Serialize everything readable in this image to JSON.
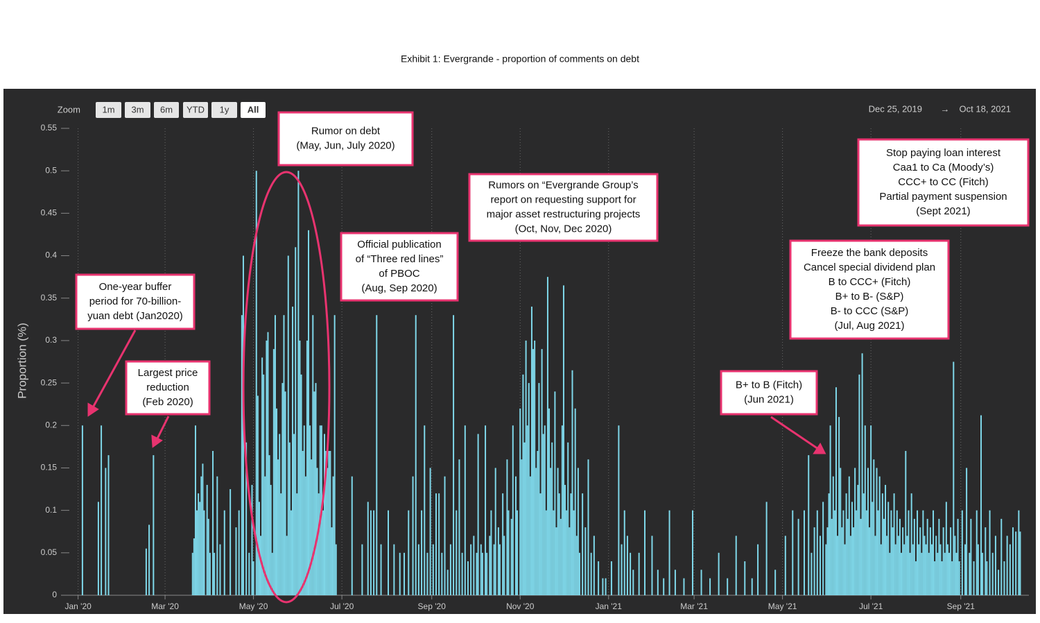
{
  "chart_data": {
    "type": "bar",
    "title": "Exhibit 1: Evergrande - proportion of comments on debt",
    "y_label": "Proportion (%)",
    "zoom_label": "Zoom",
    "zoom_buttons": [
      "1m",
      "3m",
      "6m",
      "YTD",
      "1y",
      "All"
    ],
    "range_start": "Dec 25, 2019",
    "range_separator": "→",
    "range_end": "Oct 18, 2021",
    "color": "#7fd8ea",
    "xlim": [
      "2019-12-25",
      "2021-10-18"
    ],
    "ylim": [
      0,
      0.55
    ],
    "yticks": [
      0,
      0.05,
      0.1,
      0.15,
      0.2,
      0.25,
      0.3,
      0.35,
      0.4,
      0.45,
      0.5,
      0.55
    ],
    "xticks": [
      {
        "value": "2020-01-01",
        "label": "Jan '20"
      },
      {
        "value": "2020-03-01",
        "label": "Mar '20"
      },
      {
        "value": "2020-05-01",
        "label": "May '20"
      },
      {
        "value": "2020-07-01",
        "label": "Jul '20"
      },
      {
        "value": "2020-09-01",
        "label": "Sep '20"
      },
      {
        "value": "2020-11-01",
        "label": "Nov '20"
      },
      {
        "value": "2021-01-01",
        "label": "Jan '21"
      },
      {
        "value": "2021-03-01",
        "label": "Mar '21"
      },
      {
        "value": "2021-05-01",
        "label": "May '21"
      },
      {
        "value": "2021-07-01",
        "label": "Jul '21"
      },
      {
        "value": "2021-09-01",
        "label": "Sep '21"
      }
    ],
    "grid": true,
    "annotations": [
      {
        "lines": [
          "One-year buffer",
          "period for 70-billion-",
          "yuan debt (Jan2020)"
        ]
      },
      {
        "lines": [
          "Largest price",
          "reduction",
          "(Feb 2020)"
        ]
      },
      {
        "lines": [
          "Rumor on debt",
          "(May, Jun, July 2020)"
        ]
      },
      {
        "lines": [
          "Official publication",
          "of “Three red lines”",
          "of PBOC",
          "(Aug, Sep 2020)"
        ]
      },
      {
        "lines": [
          "Rumors on “Evergrande Group’s",
          "report on requesting support for",
          "major asset restructuring projects",
          "(Oct, Nov, Dec 2020)"
        ]
      },
      {
        "lines": [
          "Stop paying loan interest",
          "Caa1 to Ca (Moody’s)",
          "CCC+ to CC (Fitch)",
          "Partial payment suspension",
          "(Sept 2021)"
        ]
      },
      {
        "lines": [
          "Freeze the bank deposits",
          "Cancel special dividend plan",
          "B to CCC+ (Fitch)",
          "B+ to B- (S&P)",
          "B- to CCC (S&P)",
          "(Jul, Aug 2021)"
        ]
      },
      {
        "lines": [
          "B+ to B (Fitch)",
          "(Jun 2021)"
        ]
      }
    ],
    "x": [
      "2020-01-04",
      "2020-01-15",
      "2020-01-17",
      "2020-01-20",
      "2020-01-22",
      "2020-02-17",
      "2020-02-19",
      "2020-02-22",
      "2020-03-20",
      "2020-03-21",
      "2020-03-22",
      "2020-03-23",
      "2020-03-24",
      "2020-03-25",
      "2020-03-26",
      "2020-03-27",
      "2020-03-28",
      "2020-03-30",
      "2020-03-31",
      "2020-04-01",
      "2020-04-03",
      "2020-04-04",
      "2020-04-06",
      "2020-04-08",
      "2020-04-11",
      "2020-04-15",
      "2020-04-19",
      "2020-04-21",
      "2020-04-23",
      "2020-04-24",
      "2020-04-26",
      "2020-04-28",
      "2020-04-30",
      "2020-05-01",
      "2020-05-03",
      "2020-05-04",
      "2020-05-05",
      "2020-05-06",
      "2020-05-07",
      "2020-05-08",
      "2020-05-09",
      "2020-05-10",
      "2020-05-11",
      "2020-05-12",
      "2020-05-13",
      "2020-05-14",
      "2020-05-15",
      "2020-05-16",
      "2020-05-17",
      "2020-05-18",
      "2020-05-19",
      "2020-05-20",
      "2020-05-21",
      "2020-05-22",
      "2020-05-23",
      "2020-05-24",
      "2020-05-25",
      "2020-05-26",
      "2020-05-27",
      "2020-05-28",
      "2020-05-29",
      "2020-05-30",
      "2020-05-31",
      "2020-06-01",
      "2020-06-02",
      "2020-06-03",
      "2020-06-04",
      "2020-06-05",
      "2020-06-06",
      "2020-06-07",
      "2020-06-08",
      "2020-06-09",
      "2020-06-10",
      "2020-06-11",
      "2020-06-12",
      "2020-06-13",
      "2020-06-14",
      "2020-06-15",
      "2020-06-16",
      "2020-06-17",
      "2020-06-18",
      "2020-06-19",
      "2020-06-20",
      "2020-06-21",
      "2020-06-22",
      "2020-06-23",
      "2020-06-24",
      "2020-06-25",
      "2020-06-26",
      "2020-06-27",
      "2020-07-08",
      "2020-07-15",
      "2020-07-19",
      "2020-07-21",
      "2020-07-23",
      "2020-07-25",
      "2020-07-28",
      "2020-08-02",
      "2020-08-06",
      "2020-08-10",
      "2020-08-13",
      "2020-08-16",
      "2020-08-19",
      "2020-08-21",
      "2020-08-23",
      "2020-08-25",
      "2020-08-27",
      "2020-08-29",
      "2020-08-31",
      "2020-09-02",
      "2020-09-04",
      "2020-09-06",
      "2020-09-08",
      "2020-09-10",
      "2020-09-12",
      "2020-09-14",
      "2020-09-16",
      "2020-09-18",
      "2020-09-20",
      "2020-09-22",
      "2020-09-24",
      "2020-09-26",
      "2020-09-28",
      "2020-09-30",
      "2020-10-02",
      "2020-10-03",
      "2020-10-05",
      "2020-10-06",
      "2020-10-08",
      "2020-10-09",
      "2020-10-11",
      "2020-10-12",
      "2020-10-14",
      "2020-10-15",
      "2020-10-17",
      "2020-10-18",
      "2020-10-20",
      "2020-10-21",
      "2020-10-23",
      "2020-10-24",
      "2020-10-26",
      "2020-10-27",
      "2020-10-29",
      "2020-10-30",
      "2020-11-01",
      "2020-11-02",
      "2020-11-03",
      "2020-11-04",
      "2020-11-05",
      "2020-11-06",
      "2020-11-07",
      "2020-11-08",
      "2020-11-09",
      "2020-11-10",
      "2020-11-11",
      "2020-11-12",
      "2020-11-13",
      "2020-11-14",
      "2020-11-15",
      "2020-11-16",
      "2020-11-17",
      "2020-11-18",
      "2020-11-19",
      "2020-11-20",
      "2020-11-21",
      "2020-11-22",
      "2020-11-23",
      "2020-11-24",
      "2020-11-25",
      "2020-11-26",
      "2020-11-27",
      "2020-11-28",
      "2020-11-29",
      "2020-11-30",
      "2020-12-01",
      "2020-12-02",
      "2020-12-03",
      "2020-12-04",
      "2020-12-05",
      "2020-12-06",
      "2020-12-07",
      "2020-12-08",
      "2020-12-09",
      "2020-12-10",
      "2020-12-11",
      "2020-12-12",
      "2020-12-14",
      "2020-12-16",
      "2020-12-18",
      "2020-12-20",
      "2020-12-22",
      "2020-12-25",
      "2020-12-28",
      "2020-12-30",
      "2021-01-03",
      "2021-01-08",
      "2021-01-10",
      "2021-01-12",
      "2021-01-14",
      "2021-01-16",
      "2021-01-18",
      "2021-01-22",
      "2021-01-26",
      "2021-01-31",
      "2021-02-04",
      "2021-02-08",
      "2021-02-12",
      "2021-02-16",
      "2021-02-22",
      "2021-02-28",
      "2021-03-06",
      "2021-03-12",
      "2021-03-18",
      "2021-03-24",
      "2021-03-30",
      "2021-04-05",
      "2021-04-10",
      "2021-04-14",
      "2021-04-20",
      "2021-04-26",
      "2021-05-03",
      "2021-05-08",
      "2021-05-12",
      "2021-05-16",
      "2021-05-19",
      "2021-05-21",
      "2021-05-23",
      "2021-05-25",
      "2021-05-27",
      "2021-05-29",
      "2021-05-31",
      "2021-06-01",
      "2021-06-02",
      "2021-06-03",
      "2021-06-04",
      "2021-06-05",
      "2021-06-06",
      "2021-06-07",
      "2021-06-08",
      "2021-06-09",
      "2021-06-10",
      "2021-06-11",
      "2021-06-12",
      "2021-06-13",
      "2021-06-14",
      "2021-06-15",
      "2021-06-16",
      "2021-06-17",
      "2021-06-18",
      "2021-06-19",
      "2021-06-20",
      "2021-06-21",
      "2021-06-22",
      "2021-06-23",
      "2021-06-24",
      "2021-06-25",
      "2021-06-26",
      "2021-06-27",
      "2021-06-28",
      "2021-06-29",
      "2021-06-30",
      "2021-07-01",
      "2021-07-02",
      "2021-07-03",
      "2021-07-04",
      "2021-07-05",
      "2021-07-06",
      "2021-07-07",
      "2021-07-08",
      "2021-07-09",
      "2021-07-10",
      "2021-07-11",
      "2021-07-12",
      "2021-07-13",
      "2021-07-14",
      "2021-07-15",
      "2021-07-16",
      "2021-07-17",
      "2021-07-18",
      "2021-07-19",
      "2021-07-20",
      "2021-07-21",
      "2021-07-22",
      "2021-07-23",
      "2021-07-24",
      "2021-07-25",
      "2021-07-26",
      "2021-07-27",
      "2021-07-28",
      "2021-07-29",
      "2021-07-30",
      "2021-07-31",
      "2021-08-01",
      "2021-08-02",
      "2021-08-03",
      "2021-08-04",
      "2021-08-05",
      "2021-08-06",
      "2021-08-07",
      "2021-08-08",
      "2021-08-09",
      "2021-08-10",
      "2021-08-11",
      "2021-08-12",
      "2021-08-13",
      "2021-08-14",
      "2021-08-15",
      "2021-08-16",
      "2021-08-17",
      "2021-08-18",
      "2021-08-19",
      "2021-08-20",
      "2021-08-21",
      "2021-08-22",
      "2021-08-23",
      "2021-08-24",
      "2021-08-25",
      "2021-08-26",
      "2021-08-27",
      "2021-08-28",
      "2021-08-29",
      "2021-08-30",
      "2021-08-31",
      "2021-09-02",
      "2021-09-04",
      "2021-09-05",
      "2021-09-07",
      "2021-09-08",
      "2021-09-10",
      "2021-09-12",
      "2021-09-13",
      "2021-09-15",
      "2021-09-16",
      "2021-09-18",
      "2021-09-19",
      "2021-09-21",
      "2021-09-23",
      "2021-09-25",
      "2021-09-27",
      "2021-09-29",
      "2021-10-01",
      "2021-10-03",
      "2021-10-05",
      "2021-10-07",
      "2021-10-09",
      "2021-10-11",
      "2021-10-12"
    ],
    "values": [
      0.2,
      0.11,
      0.2,
      0.15,
      0.165,
      0.055,
      0.083,
      0.165,
      0.05,
      0.067,
      0.2,
      0.1,
      0.12,
      0.11,
      0.14,
      0.155,
      0.1,
      0.13,
      0.09,
      0.05,
      0.17,
      0.05,
      0.14,
      0.06,
      0.1,
      0.125,
      0.08,
      0.1,
      0.33,
      0.4,
      0.18,
      0.05,
      0.13,
      0.04,
      0.5,
      0.235,
      0.11,
      0.07,
      0.28,
      0.26,
      0.14,
      0.3,
      0.31,
      0.165,
      0.13,
      0.05,
      0.29,
      0.33,
      0.22,
      0.16,
      0.19,
      0.12,
      0.25,
      0.33,
      0.24,
      0.07,
      0.4,
      0.18,
      0.1,
      0.34,
      0.19,
      0.41,
      0.12,
      0.5,
      0.3,
      0.26,
      0.17,
      0.2,
      0.14,
      0.3,
      0.43,
      0.2,
      0.16,
      0.33,
      0.24,
      0.25,
      0.15,
      0.12,
      0.2,
      0.2,
      0.1,
      0.19,
      0.17,
      0.15,
      0.17,
      0.17,
      0.08,
      0.14,
      0.33,
      0.06,
      0.14,
      0.06,
      0.11,
      0.1,
      0.1,
      0.33,
      0.06,
      0.1,
      0.06,
      0.05,
      0.05,
      0.1,
      0.14,
      0.33,
      0.06,
      0.1,
      0.2,
      0.05,
      0.15,
      0.06,
      0.12,
      0.12,
      0.05,
      0.14,
      0.03,
      0.06,
      0.33,
      0.1,
      0.16,
      0.05,
      0.2,
      0.04,
      0.06,
      0.07,
      0.05,
      0.19,
      0.06,
      0.05,
      0.2,
      0.05,
      0.07,
      0.1,
      0.06,
      0.15,
      0.08,
      0.06,
      0.12,
      0.07,
      0.16,
      0.1,
      0.09,
      0.2,
      0.14,
      0.1,
      0.22,
      0.16,
      0.26,
      0.18,
      0.3,
      0.2,
      0.25,
      0.14,
      0.34,
      0.29,
      0.3,
      0.15,
      0.17,
      0.25,
      0.12,
      0.29,
      0.19,
      0.2,
      0.1,
      0.375,
      0.22,
      0.15,
      0.18,
      0.1,
      0.24,
      0.08,
      0.15,
      0.12,
      0.09,
      0.2,
      0.365,
      0.13,
      0.1,
      0.18,
      0.08,
      0.12,
      0.265,
      0.1,
      0.22,
      0.07,
      0.15,
      0.05,
      0.12,
      0.08,
      0.16,
      0.05,
      0.07,
      0.04,
      0.02,
      0.02,
      0.04,
      0.2,
      0.06,
      0.1,
      0.07,
      0.05,
      0.03,
      0.05,
      0.1,
      0.07,
      0.03,
      0.02,
      0.1,
      0.03,
      0.02,
      0.1,
      0.03,
      0.02,
      0.05,
      0.02,
      0.07,
      0.04,
      0.02,
      0.06,
      0.11,
      0.03,
      0.07,
      0.1,
      0.09,
      0.1,
      0.165,
      0.05,
      0.08,
      0.1,
      0.07,
      0.11,
      0.06,
      0.08,
      0.12,
      0.2,
      0.09,
      0.14,
      0.1,
      0.245,
      0.07,
      0.21,
      0.15,
      0.08,
      0.1,
      0.06,
      0.12,
      0.09,
      0.14,
      0.07,
      0.11,
      0.08,
      0.15,
      0.1,
      0.13,
      0.26,
      0.09,
      0.285,
      0.12,
      0.2,
      0.1,
      0.15,
      0.08,
      0.2,
      0.11,
      0.16,
      0.07,
      0.15,
      0.1,
      0.14,
      0.06,
      0.12,
      0.09,
      0.13,
      0.07,
      0.11,
      0.05,
      0.1,
      0.08,
      0.12,
      0.06,
      0.1,
      0.07,
      0.09,
      0.05,
      0.08,
      0.06,
      0.17,
      0.07,
      0.1,
      0.05,
      0.12,
      0.06,
      0.09,
      0.04,
      0.1,
      0.06,
      0.08,
      0.05,
      0.1,
      0.07,
      0.06,
      0.09,
      0.05,
      0.08,
      0.06,
      0.1,
      0.04,
      0.07,
      0.05,
      0.09,
      0.06,
      0.04,
      0.08,
      0.05,
      0.11,
      0.06,
      0.05,
      0.08,
      0.04,
      0.275,
      0.07,
      0.05,
      0.09,
      0.04,
      0.1,
      0.06,
      0.15,
      0.05,
      0.09,
      0.04,
      0.1,
      0.06,
      0.212,
      0.05,
      0.08,
      0.04,
      0.1,
      0.05,
      0.07,
      0.03,
      0.09,
      0.04,
      0.07,
      0.06,
      0.08,
      0.075,
      0.1,
      0.075
    ]
  }
}
